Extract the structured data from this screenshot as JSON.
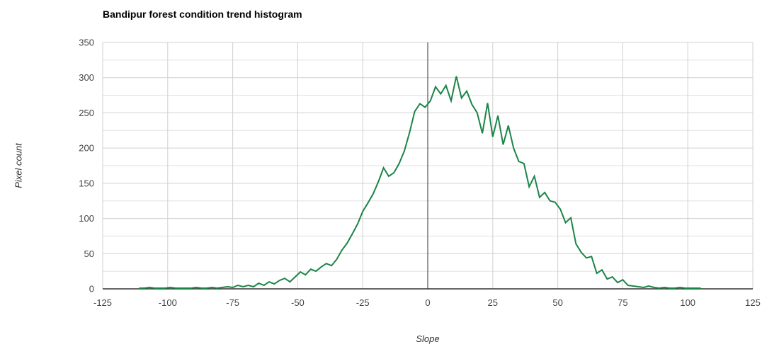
{
  "header": {
    "title": "Bandipur forest condition trend histogram"
  },
  "colors": {
    "line": "#1b8447",
    "grid_major": "#d0d0d0",
    "grid_minor": "#e0e0e0",
    "baseline": "#333333",
    "zero_line": "#333333",
    "tick_label": "#444444",
    "title": "#000000",
    "axis_title": "#333333",
    "background": "#ffffff"
  },
  "chart_data": {
    "type": "line",
    "title": "Bandipur forest condition trend histogram",
    "xlabel": "Slope",
    "ylabel": "Pixel count",
    "xlim": [
      -125,
      125
    ],
    "ylim": [
      0,
      350
    ],
    "x_ticks": [
      -125,
      -100,
      -75,
      -50,
      -25,
      0,
      25,
      50,
      75,
      100,
      125
    ],
    "y_ticks": [
      0,
      50,
      100,
      150,
      200,
      250,
      300,
      350
    ],
    "y_minor_step": 25,
    "grid": true,
    "legend": false,
    "zero_line_x": 0,
    "series": [
      {
        "name": "Pixel count",
        "x": [
          -111,
          -109,
          -107,
          -105,
          -103,
          -101,
          -99,
          -97,
          -95,
          -93,
          -91,
          -89,
          -87,
          -85,
          -83,
          -81,
          -79,
          -77,
          -75,
          -73,
          -71,
          -69,
          -67,
          -65,
          -63,
          -61,
          -59,
          -57,
          -55,
          -53,
          -51,
          -49,
          -47,
          -45,
          -43,
          -41,
          -39,
          -37,
          -35,
          -33,
          -31,
          -29,
          -27,
          -25,
          -23,
          -21,
          -19,
          -17,
          -15,
          -13,
          -11,
          -9,
          -7,
          -5,
          -3,
          -1,
          1,
          3,
          5,
          7,
          9,
          11,
          13,
          15,
          17,
          19,
          21,
          23,
          25,
          27,
          29,
          31,
          33,
          35,
          37,
          39,
          41,
          43,
          45,
          47,
          49,
          51,
          53,
          55,
          57,
          59,
          61,
          63,
          65,
          67,
          69,
          71,
          73,
          75,
          77,
          79,
          81,
          83,
          85,
          87,
          89,
          91,
          93,
          95,
          97,
          99,
          101,
          103,
          105
        ],
        "y": [
          1,
          1,
          2,
          1,
          1,
          1,
          2,
          1,
          1,
          1,
          1,
          2,
          1,
          1,
          2,
          1,
          2,
          3,
          2,
          5,
          3,
          5,
          3,
          8,
          5,
          10,
          7,
          12,
          15,
          10,
          17,
          24,
          20,
          28,
          25,
          31,
          36,
          33,
          42,
          55,
          65,
          78,
          92,
          110,
          122,
          135,
          152,
          172,
          160,
          165,
          178,
          196,
          222,
          252,
          263,
          258,
          267,
          287,
          277,
          289,
          267,
          302,
          271,
          281,
          262,
          250,
          221,
          264,
          216,
          246,
          205,
          232,
          200,
          181,
          178,
          145,
          160,
          130,
          137,
          125,
          123,
          113,
          94,
          101,
          64,
          52,
          44,
          46,
          22,
          27,
          14,
          17,
          9,
          13,
          5,
          4,
          3,
          2,
          4,
          2,
          1,
          2,
          1,
          1,
          2,
          1,
          1,
          1,
          1
        ]
      }
    ]
  }
}
